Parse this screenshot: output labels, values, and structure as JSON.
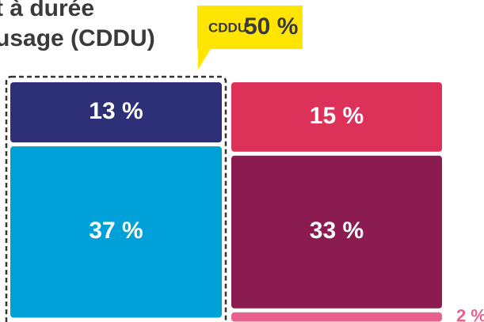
{
  "chart_data": {
    "type": "stacked-column",
    "title_lines": [
      "t à durée",
      "usage (CDDU)"
    ],
    "callout": {
      "label": "CDDU",
      "value": 50,
      "value_label": "50 %",
      "color": "#ffe500"
    },
    "columns": [
      {
        "segments": [
          {
            "value": 13,
            "value_label": "13 %",
            "color": "#2e3077"
          },
          {
            "value": 37,
            "value_label": "37 %",
            "color": "#00a1d8"
          }
        ]
      },
      {
        "segments": [
          {
            "value": 15,
            "value_label": "15 %",
            "color": "#dc3158"
          },
          {
            "value": 33,
            "value_label": "33 %",
            "color": "#8a1c52"
          },
          {
            "value": 2,
            "value_label": "2 %",
            "color": "#e8608c"
          }
        ]
      }
    ]
  }
}
